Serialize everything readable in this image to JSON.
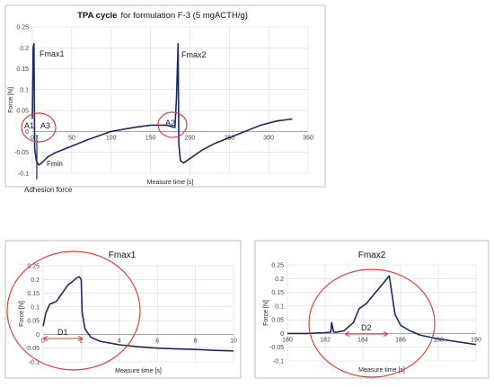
{
  "colors": {
    "series": "#1f2a5c",
    "circle": "#e0403a",
    "arrow": "#e0403a",
    "grid": "#d9d9d9"
  },
  "top": {
    "title_bold": "TPA cycle",
    "title_rest": "for formulation F-3 (5 mgACTH/g)",
    "annotations": {
      "fmax1": "Fmax1",
      "fmax2": "Fmax2",
      "fmin": "Fmin",
      "a1": "A1",
      "a2": "A2",
      "a3": "A3"
    },
    "adhesion_label": "Adhesion force"
  },
  "left": {
    "title": "Fmax1",
    "d_label": "D1"
  },
  "right": {
    "title": "Fmax2",
    "d_label": "D2"
  },
  "chart_data": [
    {
      "type": "line",
      "xlabel": "Measure time [s]",
      "ylabel": "Force [N]",
      "xlim": [
        0,
        350
      ],
      "ylim": [
        -0.1,
        0.25
      ],
      "xticks": [
        0,
        50,
        100,
        150,
        200,
        250,
        300,
        350
      ],
      "yticks": [
        -0.1,
        -0.05,
        0,
        0.05,
        0.1,
        0.15,
        0.2,
        0.25
      ],
      "series": [
        {
          "x": [
            0,
            1,
            2,
            3,
            5,
            8,
            12,
            20,
            30,
            50,
            70,
            100,
            130,
            150,
            170,
            180,
            181,
            183,
            185,
            186,
            188,
            192,
            200,
            215,
            230,
            250,
            270,
            290,
            310,
            330
          ],
          "y": [
            0.03,
            0.2,
            0.21,
            -0.04,
            -0.07,
            -0.08,
            -0.075,
            -0.06,
            -0.05,
            -0.035,
            -0.02,
            0.0,
            0.01,
            0.015,
            0.015,
            0.01,
            0.01,
            0.08,
            0.21,
            -0.03,
            -0.07,
            -0.075,
            -0.065,
            -0.045,
            -0.03,
            -0.015,
            0.0,
            0.015,
            0.025,
            0.03
          ]
        }
      ]
    },
    {
      "type": "line",
      "xlabel": "Measure time [s]",
      "ylabel": "Force [N]",
      "xlim": [
        0,
        10
      ],
      "ylim": [
        -0.1,
        0.25
      ],
      "xticks": [
        0,
        2,
        4,
        6,
        8,
        10
      ],
      "yticks": [
        -0.1,
        -0.05,
        0,
        0.05,
        0.1,
        0.15,
        0.2,
        0.25
      ],
      "series": [
        {
          "x": [
            0,
            0.15,
            0.35,
            0.7,
            1.0,
            1.3,
            1.5,
            1.75,
            1.9,
            2.0,
            2.05,
            2.2,
            2.5,
            3.0,
            4.0,
            5.0,
            6.0,
            7.0,
            8.0,
            9.0,
            10.0
          ],
          "y": [
            0.03,
            0.08,
            0.11,
            0.12,
            0.15,
            0.18,
            0.19,
            0.205,
            0.21,
            0.2,
            0.08,
            0.02,
            -0.01,
            -0.025,
            -0.038,
            -0.045,
            -0.05,
            -0.053,
            -0.055,
            -0.058,
            -0.06
          ]
        }
      ]
    },
    {
      "type": "line",
      "xlabel": "Measure time [s]",
      "ylabel": "Force [N]",
      "xlim": [
        180,
        190
      ],
      "ylim": [
        -0.1,
        0.25
      ],
      "xticks": [
        180,
        182,
        184,
        186,
        188,
        190
      ],
      "yticks": [
        -0.1,
        -0.05,
        0,
        0.05,
        0.1,
        0.15,
        0.2,
        0.25
      ],
      "series": [
        {
          "x": [
            180,
            181,
            182,
            182.3,
            182.35,
            182.45,
            182.6,
            183,
            183.5,
            183.8,
            184.2,
            184.8,
            185.4,
            185.55,
            185.7,
            186,
            186.5,
            187,
            188,
            189,
            190
          ],
          "y": [
            0.0,
            0.0,
            0.003,
            0.005,
            0.04,
            0.005,
            0.005,
            0.01,
            0.04,
            0.09,
            0.11,
            0.16,
            0.21,
            0.14,
            0.07,
            0.03,
            0.01,
            -0.005,
            -0.02,
            -0.03,
            -0.04
          ]
        }
      ]
    }
  ]
}
